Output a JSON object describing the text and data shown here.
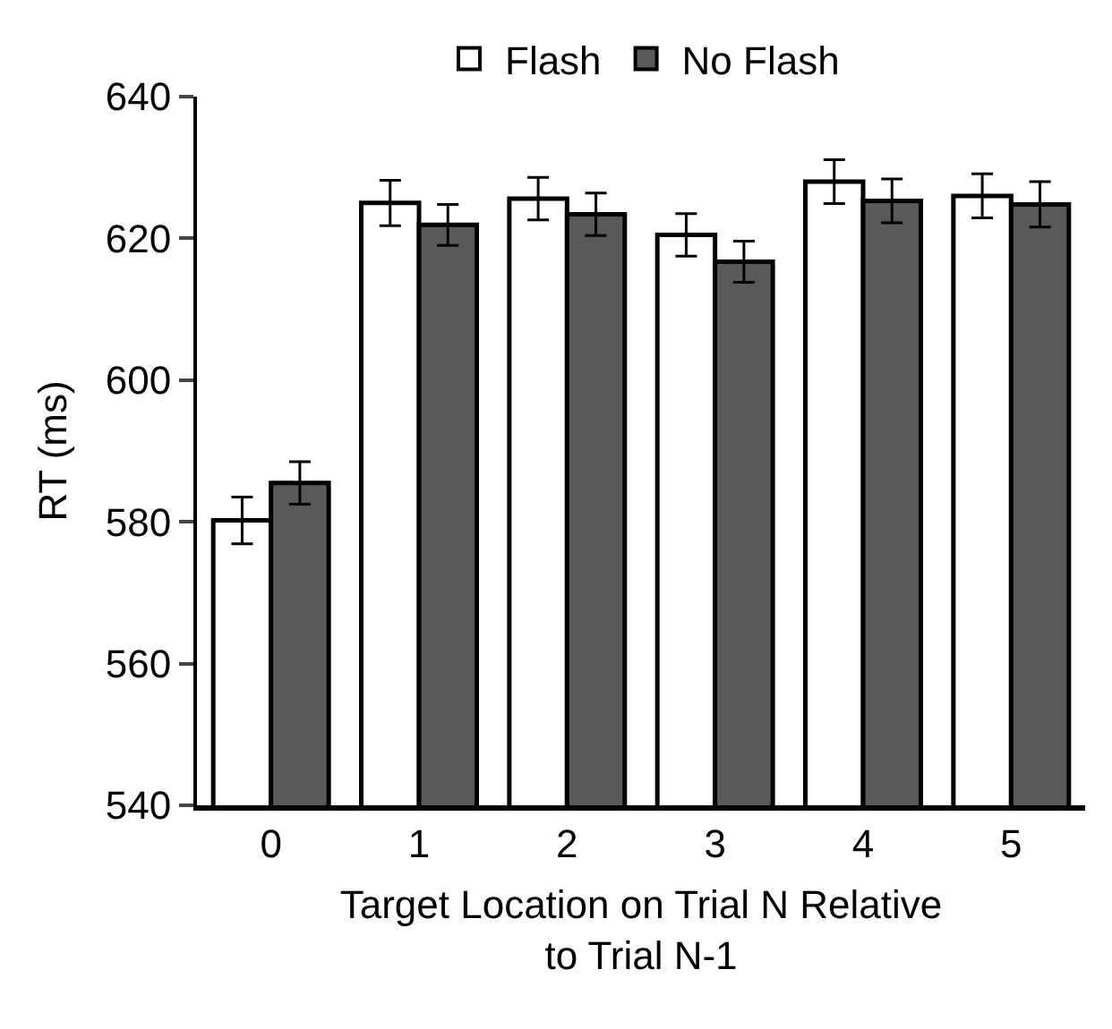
{
  "chart_data": {
    "type": "bar",
    "xlabel": "Target Location on Trial N Relative\nto Trial N-1",
    "ylabel": "RT (ms)",
    "categories": [
      "0",
      "1",
      "2",
      "3",
      "4",
      "5"
    ],
    "series": [
      {
        "name": "Flash",
        "color": "#ffffff",
        "values": [
          580.2,
          625.0,
          625.6,
          620.5,
          628.0,
          626.0
        ],
        "errors": [
          3.3,
          3.2,
          3.0,
          3.0,
          3.1,
          3.1
        ]
      },
      {
        "name": "No Flash",
        "color": "#595959",
        "values": [
          585.5,
          621.9,
          623.4,
          616.7,
          625.3,
          624.8
        ],
        "errors": [
          3.0,
          2.9,
          3.0,
          2.9,
          3.1,
          3.2
        ]
      }
    ],
    "ylim": [
      540,
      640
    ],
    "yticks": [
      540,
      560,
      580,
      600,
      620,
      640
    ],
    "legend": "top"
  }
}
